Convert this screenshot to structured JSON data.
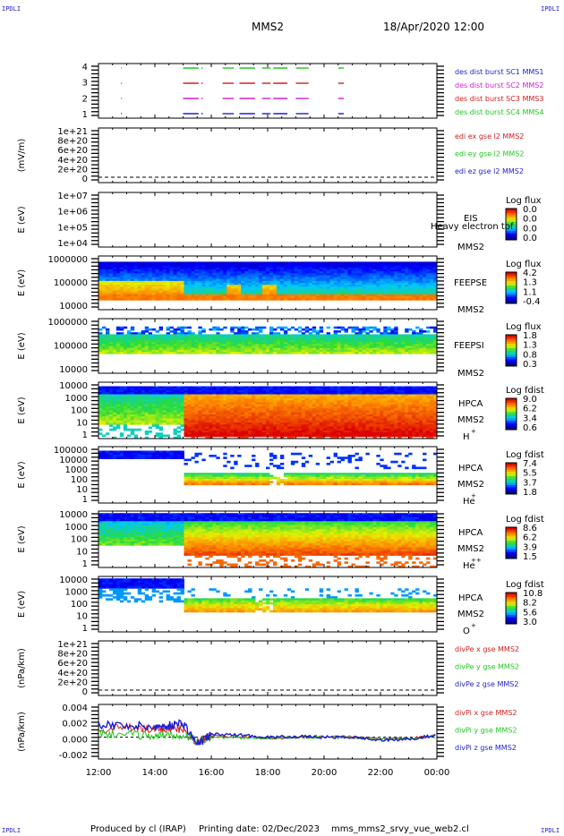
{
  "corner_label": "IPDLI",
  "header": {
    "mission": "MMS2",
    "datetime": "18/Apr/2020 12:00"
  },
  "footer": {
    "produced": "Produced by cl (IRAP)",
    "printed": "Printing date: 02/Dec/2023",
    "file": "mms_mms2_srvy_vue_web2.cl"
  },
  "colors": {
    "blue": "#1e1ed2",
    "magenta": "#d21ed2",
    "red": "#d21e1e",
    "green": "#1ec81e"
  },
  "chart_data": [
    {
      "type": "line",
      "panel": "burst",
      "ylim": [
        0.5,
        4.5
      ],
      "y_ticks": [
        "4",
        "3",
        "2",
        "1"
      ],
      "legend": [
        "des dist burst SC1 MMS1",
        "des dist burst SC2 MMS2",
        "des dist burst SC3 MMS3",
        "des dist burst SC4 MMS4"
      ],
      "legend_colors": [
        "#1e1ed2",
        "#d21ed2",
        "#d21e1e",
        "#1ec81e"
      ],
      "series": [
        {
          "level": 4,
          "color": "#1ec81e",
          "intervals_h": [
            [
              12.8,
              12.82
            ],
            [
              15.0,
              15.55
            ],
            [
              15.65,
              15.7
            ],
            [
              16.4,
              16.8
            ],
            [
              17.0,
              17.55
            ],
            [
              17.8,
              18.1
            ],
            [
              18.2,
              18.7
            ],
            [
              19.0,
              19.45
            ],
            [
              20.5,
              20.7
            ]
          ]
        },
        {
          "level": 3,
          "color": "#d21e1e",
          "intervals_h": [
            [
              12.8,
              12.82
            ],
            [
              15.0,
              15.55
            ],
            [
              15.65,
              15.7
            ],
            [
              16.4,
              16.8
            ],
            [
              17.0,
              17.55
            ],
            [
              17.8,
              18.1
            ],
            [
              18.2,
              18.7
            ],
            [
              19.0,
              19.45
            ],
            [
              20.5,
              20.7
            ]
          ]
        },
        {
          "level": 2,
          "color": "#d21ed2",
          "intervals_h": [
            [
              12.8,
              12.82
            ],
            [
              15.0,
              15.55
            ],
            [
              15.65,
              15.7
            ],
            [
              16.4,
              16.8
            ],
            [
              17.0,
              17.55
            ],
            [
              17.8,
              18.1
            ],
            [
              18.2,
              18.7
            ],
            [
              19.0,
              19.45
            ],
            [
              20.5,
              20.7
            ]
          ]
        },
        {
          "level": 1,
          "color": "#1e1ed2",
          "intervals_h": [
            [
              12.8,
              12.82
            ],
            [
              15.0,
              15.55
            ],
            [
              15.65,
              15.7
            ],
            [
              16.4,
              16.8
            ],
            [
              17.0,
              17.55
            ],
            [
              17.8,
              18.1
            ],
            [
              18.2,
              18.7
            ],
            [
              19.0,
              19.45
            ],
            [
              20.5,
              20.7
            ]
          ]
        }
      ]
    },
    {
      "type": "line",
      "panel": "edi",
      "ylabel": "(mV/m)",
      "y_ticks": [
        "1e+21",
        "8e+20",
        "6e+20",
        "4e+20",
        "2e+20",
        "0"
      ],
      "ylim": [
        0,
        1e+21
      ],
      "legend": [
        "edi ex gse l2 MMS2",
        "edi ey gse l2 MMS2",
        "edi ez gse l2 MMS2"
      ],
      "legend_colors": [
        "#d21e1e",
        "#1ec81e",
        "#1e1ed2"
      ],
      "zero_line": true
    },
    {
      "type": "heatmap",
      "panel": "eis",
      "ylabel": "E (eV)",
      "y_ticks": [
        "1e+07",
        "1e+06",
        "1e+05",
        "1e+04"
      ],
      "ylim": [
        10000.0,
        10000000.0
      ],
      "yscale": "log",
      "labels": [
        "EIS",
        "Heavy electron tof",
        "MMS2"
      ],
      "colorbar_title": "Log flux",
      "colorbar_ticks": [
        "0.0",
        "0.0",
        "0.0",
        "0.0"
      ]
    },
    {
      "type": "heatmap",
      "panel": "feepse",
      "ylabel": "E (eV)",
      "y_ticks": [
        "1000000",
        "100000",
        "10000"
      ],
      "ylim": [
        10000,
        1000000
      ],
      "yscale": "log",
      "labels": [
        "FEEPSE",
        "MMS2"
      ],
      "colorbar_title": "Log flux",
      "colorbar_ticks": [
        "4.2",
        "1.3",
        "1.1",
        "-0.4"
      ]
    },
    {
      "type": "heatmap",
      "panel": "feepsi",
      "ylabel": "E (eV)",
      "y_ticks": [
        "1000000",
        "100000",
        "10000"
      ],
      "ylim": [
        10000,
        1000000
      ],
      "yscale": "log",
      "labels": [
        "FEEPSI",
        "MMS2"
      ],
      "colorbar_title": "Log flux",
      "colorbar_ticks": [
        "1.8",
        "1.3",
        "0.8",
        "0.3"
      ]
    },
    {
      "type": "heatmap",
      "panel": "hpca-h",
      "ylabel": "E (eV)",
      "y_ticks": [
        "10000",
        "1000",
        "100",
        "10",
        "1"
      ],
      "ylim": [
        1,
        40000
      ],
      "yscale": "log",
      "labels": [
        "HPCA",
        "MMS2",
        "H",
        "+"
      ],
      "colorbar_title": "Log fdist",
      "colorbar_ticks": [
        "9.0",
        "6.2",
        "3.4",
        "0.6"
      ]
    },
    {
      "type": "heatmap",
      "panel": "hpca-he",
      "ylabel": "E (eV)",
      "y_ticks": [
        "100000",
        "10000",
        "1000",
        "100",
        "10",
        "1"
      ],
      "ylim": [
        1,
        100000
      ],
      "yscale": "log",
      "labels": [
        "HPCA",
        "MMS2",
        "He",
        "+"
      ],
      "colorbar_title": "Log fdist",
      "colorbar_ticks": [
        "7.4",
        "5.5",
        "3.7",
        "1.8"
      ]
    },
    {
      "type": "heatmap",
      "panel": "hpca-he2",
      "ylabel": "E (eV)",
      "y_ticks": [
        "10000",
        "1000",
        "100",
        "10",
        "1"
      ],
      "ylim": [
        1,
        40000
      ],
      "yscale": "log",
      "labels": [
        "HPCA",
        "MMS2",
        "He",
        "++"
      ],
      "colorbar_title": "Log fdist",
      "colorbar_ticks": [
        "8.6",
        "6.2",
        "3.9",
        "1.5"
      ]
    },
    {
      "type": "heatmap",
      "panel": "hpca-o",
      "ylabel": "E (eV)",
      "y_ticks": [
        "10000",
        "1000",
        "100",
        "10",
        "1"
      ],
      "ylim": [
        1,
        40000
      ],
      "yscale": "log",
      "labels": [
        "HPCA",
        "MMS2",
        "O",
        "+"
      ],
      "colorbar_title": "Log fdist",
      "colorbar_ticks": [
        "10.8",
        "8.2",
        "5.6",
        "3.0"
      ]
    },
    {
      "type": "line",
      "panel": "divpe",
      "ylabel": "(nPa/km)",
      "y_ticks": [
        "1e+21",
        "8e+20",
        "6e+20",
        "4e+20",
        "2e+20",
        "0"
      ],
      "ylim": [
        0,
        1e+21
      ],
      "legend": [
        "divPe x gse MMS2",
        "divPe y gse MMS2",
        "divPe z gse MMS2"
      ],
      "legend_colors": [
        "#d21e1e",
        "#1ec81e",
        "#1e1ed2"
      ],
      "zero_line": true
    },
    {
      "type": "line",
      "panel": "divpi",
      "ylabel": "(nPa/km)",
      "y_ticks": [
        "0.004",
        "0.002",
        "0.000",
        "-0.002"
      ],
      "ylim": [
        -0.003,
        0.0045
      ],
      "legend": [
        "divPi x gse MMS2",
        "divPi y gse MMS2",
        "divPi z gse MMS2"
      ],
      "legend_colors": [
        "#d21e1e",
        "#1ec81e",
        "#1e1ed2"
      ],
      "x_hours": [
        12,
        13,
        14,
        14.5,
        15,
        15.5,
        16,
        17,
        18,
        19,
        20,
        21,
        22,
        23,
        24
      ],
      "series": [
        {
          "name": "divPi x gse MMS2",
          "color": "#d21e1e",
          "values": [
            0.0012,
            0.0013,
            0.001,
            0.0012,
            0.0011,
            -0.0008,
            0.0003,
            0.0001,
            -0.0002,
            0.0,
            0.0001,
            0.0,
            -0.0003,
            -0.0002,
            0.0002
          ]
        },
        {
          "name": "divPi y gse MMS2",
          "color": "#1ec81e",
          "values": [
            0.0005,
            0.0004,
            0.0002,
            0.0003,
            0.0004,
            -0.0006,
            0.0,
            -0.0001,
            -0.0001,
            0.0,
            0.0,
            -0.0001,
            -0.0002,
            -0.0001,
            0.0001
          ]
        },
        {
          "name": "divPi z gse MMS2",
          "color": "#1e1ed2",
          "values": [
            0.0018,
            0.0016,
            0.0014,
            0.0016,
            0.002,
            -0.001,
            0.0004,
            0.0003,
            0.0,
            0.0001,
            0.0,
            0.0,
            -0.0004,
            -0.0003,
            0.0003
          ]
        }
      ]
    }
  ],
  "x_axis": {
    "ticks": [
      "12:00",
      "14:00",
      "16:00",
      "18:00",
      "20:00",
      "22:00",
      "00:00"
    ],
    "range_h": [
      12,
      24
    ]
  }
}
